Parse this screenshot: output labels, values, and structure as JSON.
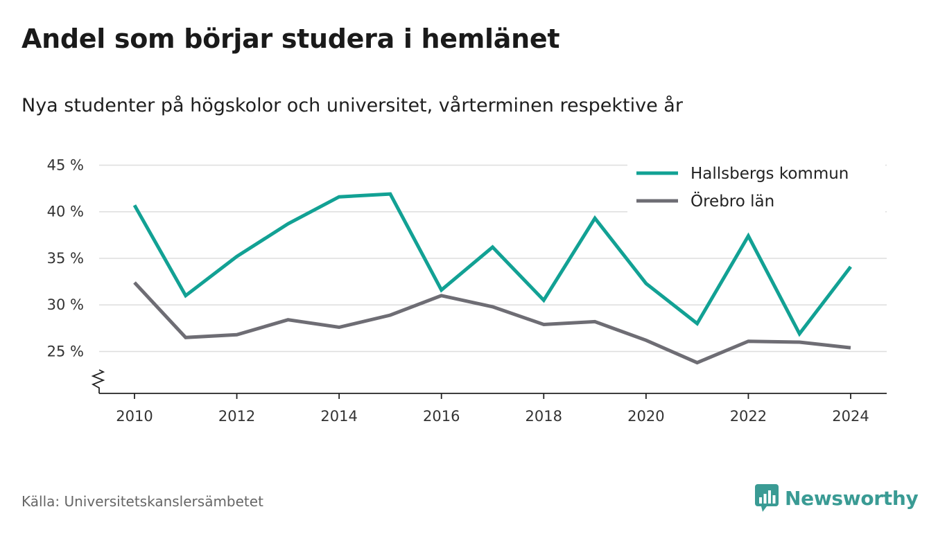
{
  "header": {
    "title": "Andel som börjar studera i hemlänet",
    "subtitle": "Nya studenter på högskolor och universitet, vårterminen respektive år"
  },
  "footer": {
    "source": "Källa: Universitetskanslersämbetet",
    "brand": "Newsworthy"
  },
  "colors": {
    "hallsberg": "#12a194",
    "orebro": "#6e6d74",
    "grid": "#dddddd",
    "brand": "#3a9b94"
  },
  "icons": {
    "brand_logo": "newsworthy-bar-chart-icon"
  },
  "chart_data": {
    "type": "line",
    "title": "Andel som börjar studera i hemlänet",
    "subtitle": "Nya studenter på högskolor och universitet, vårterminen respektive år",
    "x": [
      2010,
      2011,
      2012,
      2013,
      2014,
      2015,
      2016,
      2017,
      2018,
      2019,
      2020,
      2021,
      2022,
      2023,
      2024
    ],
    "series": [
      {
        "name": "Hallsbergs kommun",
        "values": [
          40.7,
          31.0,
          35.2,
          38.7,
          41.6,
          41.9,
          31.6,
          36.2,
          30.5,
          39.3,
          32.3,
          28.0,
          37.4,
          26.9,
          34.1
        ]
      },
      {
        "name": "Örebro län",
        "values": [
          32.4,
          26.5,
          26.8,
          28.4,
          27.6,
          28.9,
          31.0,
          29.8,
          27.9,
          28.2,
          26.2,
          23.8,
          26.1,
          26.0,
          25.4
        ]
      }
    ],
    "ylim": [
      20.5,
      46
    ],
    "yticks": [
      25,
      30,
      35,
      40,
      45
    ],
    "ytick_labels": [
      "25 %",
      "30 %",
      "35 %",
      "40 %",
      "45 %"
    ],
    "xticks": [
      2010,
      2012,
      2014,
      2016,
      2018,
      2020,
      2022,
      2024
    ],
    "xtick_labels": [
      "2010",
      "2012",
      "2014",
      "2016",
      "2018",
      "2020",
      "2022",
      "2024"
    ],
    "axis_break": true,
    "grid": true,
    "legend": "top-right"
  }
}
